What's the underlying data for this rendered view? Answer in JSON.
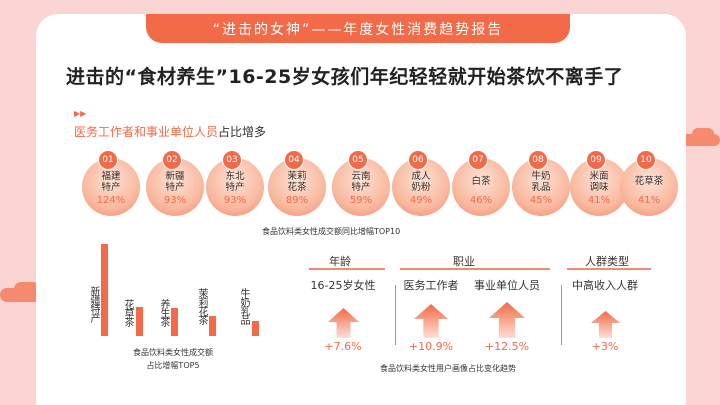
{
  "banner": "“进击的女神”——年度女性消费趋势报告",
  "headline": "进击的“食材养生”16-25岁女孩们年纪轻轻就开始茶饮不离手了",
  "arrows": "▶▶",
  "sub": {
    "highlight": "医务工作者和事业单位人员",
    "rest": "占比增多"
  },
  "top10": [
    {
      "num": "01",
      "line1": "福建",
      "line2": "特产",
      "pct": "124%"
    },
    {
      "num": "02",
      "line1": "新疆",
      "line2": "特产",
      "pct": "93%"
    },
    {
      "num": "03",
      "line1": "东北",
      "line2": "特产",
      "pct": "93%"
    },
    {
      "num": "04",
      "line1": "茉莉",
      "line2": "花茶",
      "pct": "89%"
    },
    {
      "num": "05",
      "line1": "云南",
      "line2": "特产",
      "pct": "59%"
    },
    {
      "num": "06",
      "line1": "成人",
      "line2": "奶粉",
      "pct": "49%"
    },
    {
      "num": "07",
      "line1": "白茶",
      "line2": "",
      "pct": "46%"
    },
    {
      "num": "08",
      "line1": "牛奶",
      "line2": "乳品",
      "pct": "45%"
    },
    {
      "num": "09",
      "line1": "米面",
      "line2": "调味",
      "pct": "41%"
    },
    {
      "num": "10",
      "line1": "花草茶",
      "line2": "",
      "pct": "41%"
    }
  ],
  "top10_caption": "食品饮料类女性成交额同比增幅TOP10",
  "top5": [
    {
      "label": "新疆特产",
      "value": 1.0
    },
    {
      "label": "花草茶",
      "value": 0.31
    },
    {
      "label": "养生茶",
      "value": 0.3
    },
    {
      "label": "茉莉花茶",
      "value": 0.22
    },
    {
      "label": "牛奶乳品",
      "value": 0.16
    }
  ],
  "top5_caption": {
    "line1": "食品饮料类女性成交额",
    "line2": "占比增幅TOP5"
  },
  "profile": {
    "headers": {
      "age": "年龄",
      "job": "职业",
      "crowd": "人群类型"
    },
    "items": [
      {
        "label": "16-25岁女性",
        "value": "+7.6%",
        "level": 0.7
      },
      {
        "label": "医务工作者",
        "value": "+10.9%",
        "level": 0.9
      },
      {
        "label": "事业单位人员",
        "value": "+12.5%",
        "level": 1.0
      },
      {
        "label": "中高收入人群",
        "value": "+3%",
        "level": 0.55
      }
    ],
    "caption": "食品饮料类女性用户画像占比变化趋势"
  },
  "colors": {
    "accent": "#f26a47",
    "background": "#fbd4d4"
  }
}
